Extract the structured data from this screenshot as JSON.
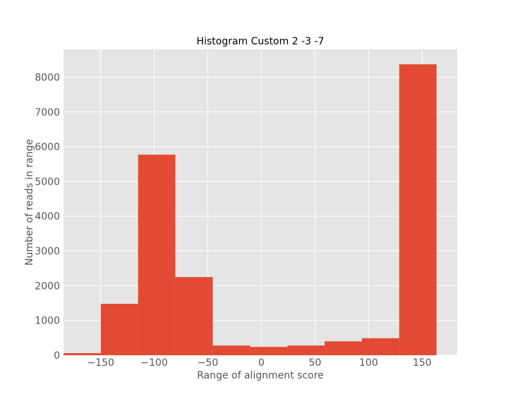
{
  "chart_data": {
    "type": "bar",
    "title": "Histogram Custom 2 -3 -7",
    "xlabel": "Range of alignment score",
    "ylabel": "Number of reads in range",
    "xlim": [
      -184.7,
      182.7
    ],
    "ylim": [
      0,
      8800
    ],
    "grid": true,
    "x_ticks": [
      -150,
      -100,
      -50,
      0,
      50,
      100,
      150
    ],
    "x_tick_labels": [
      "−150",
      "−100",
      "−50",
      "0",
      "50",
      "100",
      "150"
    ],
    "y_ticks": [
      0,
      1000,
      2000,
      3000,
      4000,
      5000,
      6000,
      7000,
      8000
    ],
    "y_tick_labels": [
      "0",
      "1000",
      "2000",
      "3000",
      "4000",
      "5000",
      "6000",
      "7000",
      "8000"
    ],
    "bin_edges": [
      -184.7,
      -149.9,
      -115.1,
      -80.3,
      -45.4,
      -10.6,
      24.2,
      59.0,
      93.8,
      128.6,
      163.4
    ],
    "values": [
      60,
      1480,
      5770,
      2250,
      280,
      240,
      280,
      400,
      490,
      8370
    ],
    "bar_color": "#E24A33",
    "background_color": "#E5E5E5",
    "grid_color": "#FFFFFF"
  }
}
